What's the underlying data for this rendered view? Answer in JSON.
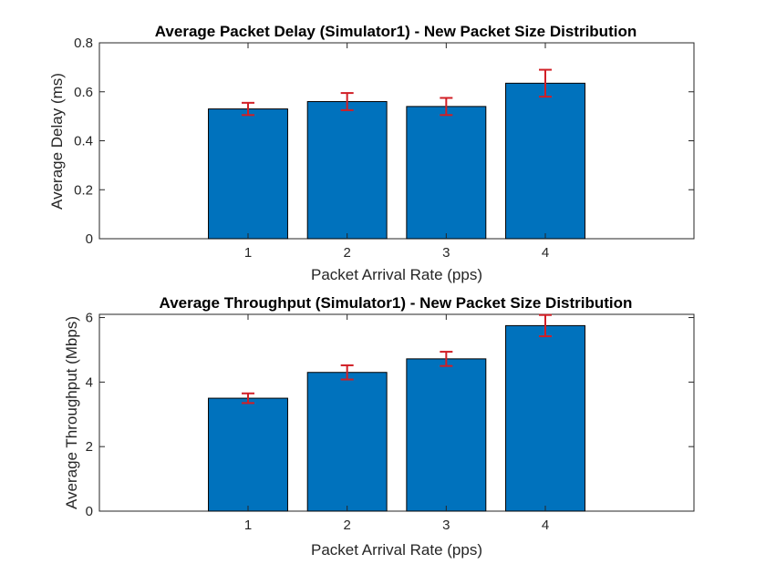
{
  "colors": {
    "bar": "#0072BD",
    "error": "#D11F26",
    "axis": "#262626"
  },
  "chart_data": [
    {
      "type": "bar",
      "title": "Average Packet Delay (Simulator1) - New Packet Size Distribution",
      "xlabel": "Packet Arrival Rate (pps)",
      "ylabel": "Average Delay (ms)",
      "categories": [
        "1",
        "2",
        "3",
        "4"
      ],
      "values": [
        0.53,
        0.56,
        0.54,
        0.635
      ],
      "error": [
        0.025,
        0.035,
        0.035,
        0.055
      ],
      "xlim": [
        -0.5,
        5.5
      ],
      "ylim": [
        0,
        0.8
      ],
      "yticks": [
        0,
        0.2,
        0.4,
        0.6,
        0.8
      ],
      "yticklabels": [
        "0",
        "0.2",
        "0.4",
        "0.6",
        "0.8"
      ],
      "grid": false
    },
    {
      "type": "bar",
      "title": "Average Throughput (Simulator1) - New Packet Size Distribution",
      "xlabel": "Packet Arrival Rate (pps)",
      "ylabel": "Average Throughput (Mbps)",
      "categories": [
        "1",
        "2",
        "3",
        "4"
      ],
      "values": [
        3.5,
        4.3,
        4.72,
        5.75
      ],
      "error": [
        0.15,
        0.22,
        0.22,
        0.33
      ],
      "xlim": [
        -0.5,
        5.5
      ],
      "ylim": [
        0,
        6.1
      ],
      "yticks": [
        0,
        2,
        4,
        6
      ],
      "yticklabels": [
        "0",
        "2",
        "4",
        "6"
      ],
      "grid": false
    }
  ]
}
